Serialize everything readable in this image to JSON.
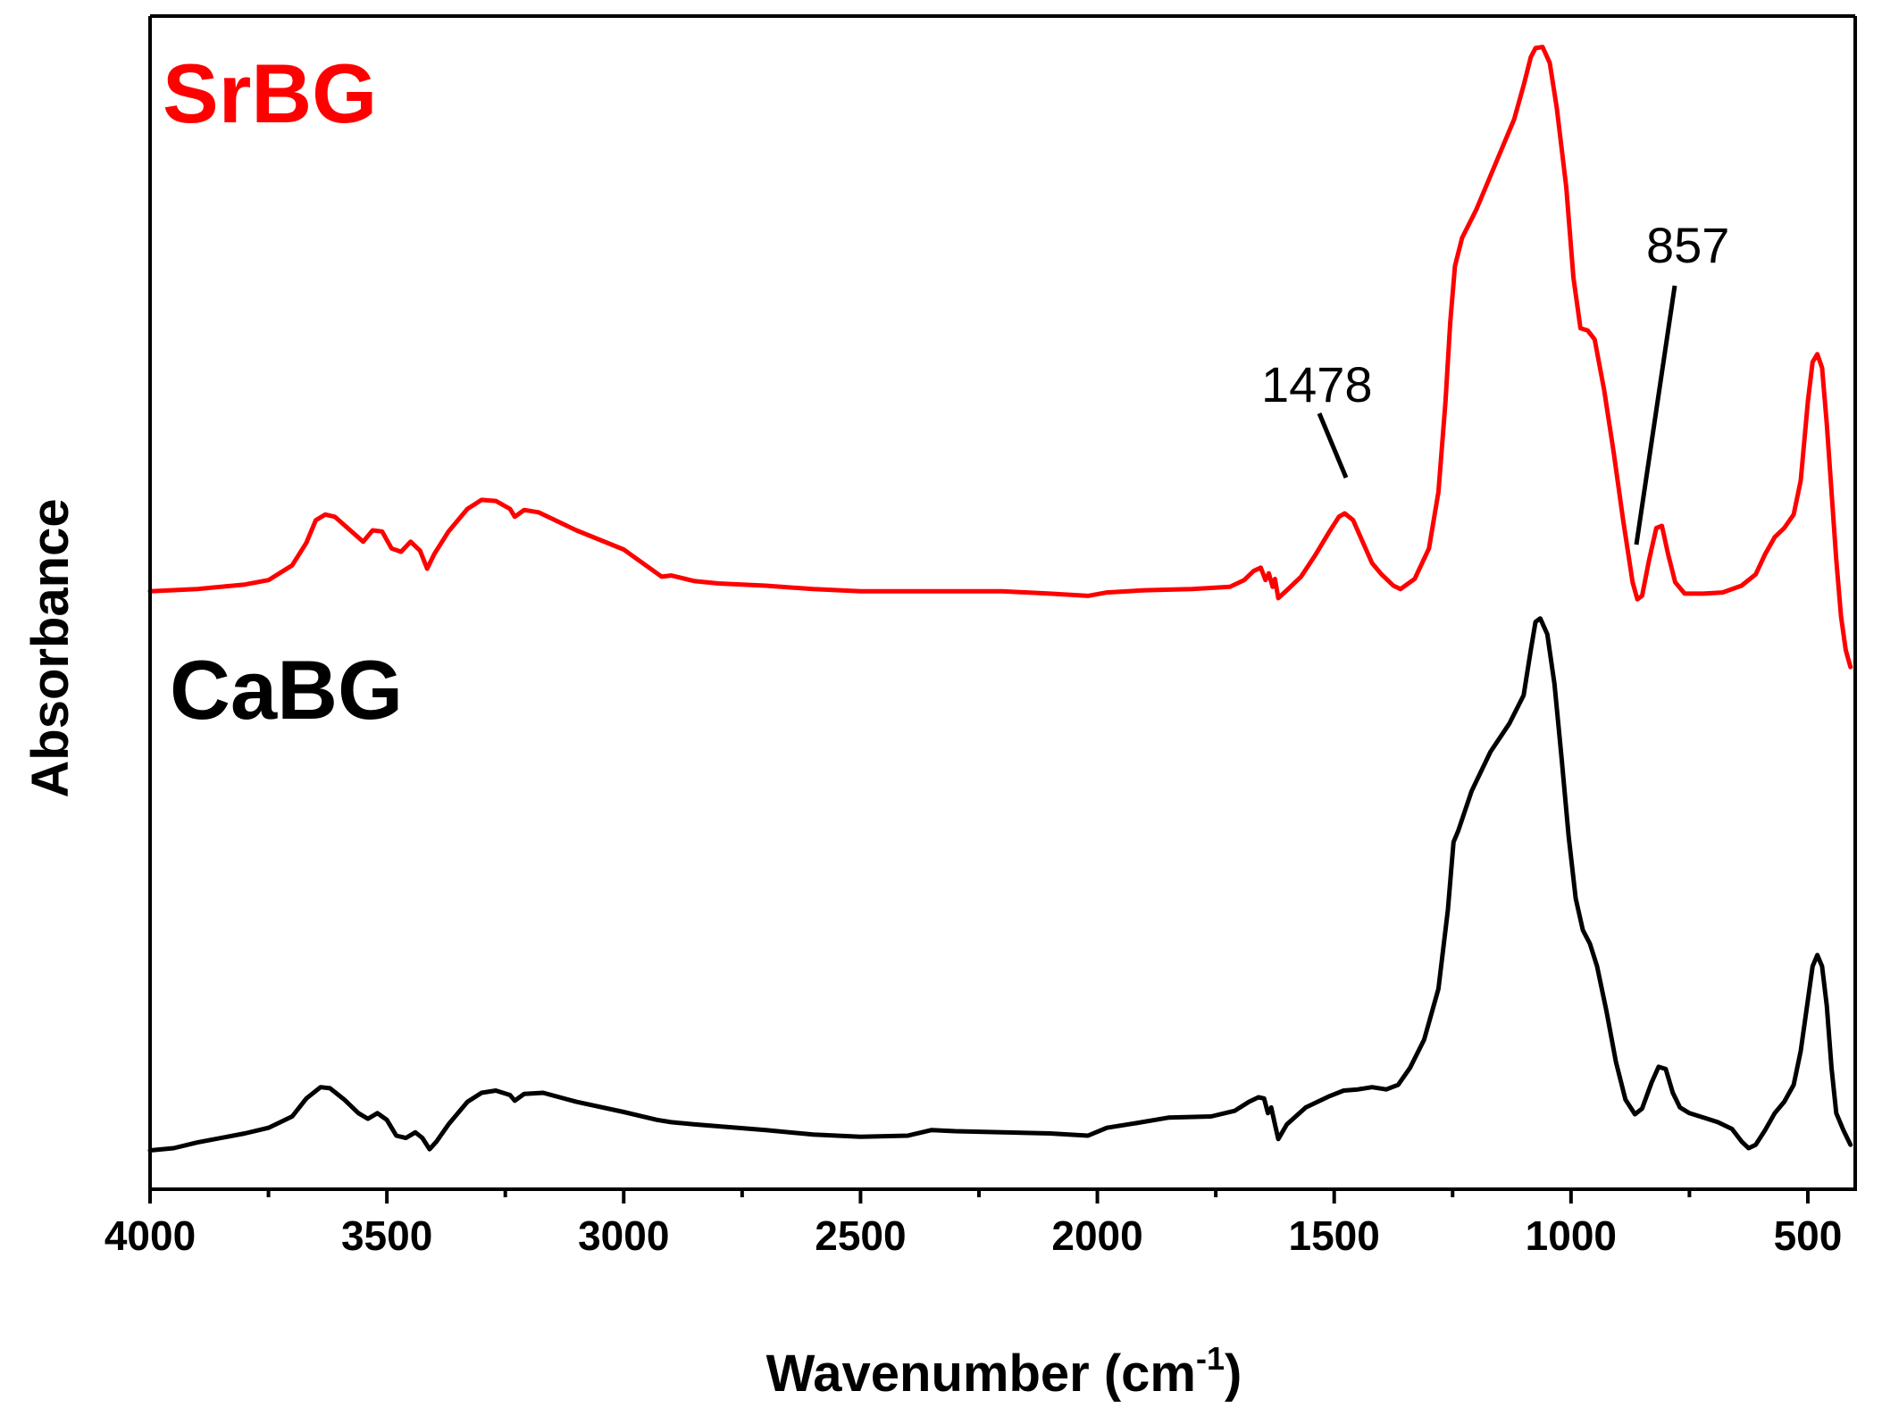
{
  "chart_data": {
    "type": "line",
    "xlabel": "Wavenumber (cm",
    "xlabel_sup": "-1",
    "xlabel_suffix": ")",
    "ylabel": "Absorbance",
    "xlim": [
      4000,
      400
    ],
    "x_reversed": true,
    "ylim": [
      0,
      1
    ],
    "y_ticks_shown": false,
    "grid": false,
    "x_ticks": [
      4000,
      3500,
      3000,
      2500,
      2000,
      1500,
      1000,
      500
    ],
    "x_minor_ticks": [
      3750,
      3250,
      2750,
      2250,
      1750,
      1250,
      750
    ],
    "series": [
      {
        "name": "SrBG",
        "color": "#ff0000",
        "points": [
          [
            4000,
            0.512
          ],
          [
            3900,
            0.514
          ],
          [
            3800,
            0.518
          ],
          [
            3750,
            0.522
          ],
          [
            3700,
            0.535
          ],
          [
            3670,
            0.555
          ],
          [
            3650,
            0.575
          ],
          [
            3630,
            0.58
          ],
          [
            3610,
            0.578
          ],
          [
            3580,
            0.567
          ],
          [
            3550,
            0.556
          ],
          [
            3530,
            0.566
          ],
          [
            3510,
            0.565
          ],
          [
            3490,
            0.55
          ],
          [
            3470,
            0.547
          ],
          [
            3450,
            0.556
          ],
          [
            3430,
            0.548
          ],
          [
            3415,
            0.532
          ],
          [
            3400,
            0.545
          ],
          [
            3370,
            0.565
          ],
          [
            3330,
            0.585
          ],
          [
            3300,
            0.593
          ],
          [
            3270,
            0.592
          ],
          [
            3240,
            0.585
          ],
          [
            3230,
            0.578
          ],
          [
            3210,
            0.584
          ],
          [
            3180,
            0.582
          ],
          [
            3100,
            0.566
          ],
          [
            3000,
            0.549
          ],
          [
            2950,
            0.534
          ],
          [
            2920,
            0.525
          ],
          [
            2900,
            0.526
          ],
          [
            2880,
            0.524
          ],
          [
            2850,
            0.521
          ],
          [
            2800,
            0.519
          ],
          [
            2700,
            0.517
          ],
          [
            2600,
            0.514
          ],
          [
            2500,
            0.512
          ],
          [
            2400,
            0.512
          ],
          [
            2300,
            0.512
          ],
          [
            2200,
            0.512
          ],
          [
            2100,
            0.51
          ],
          [
            2020,
            0.508
          ],
          [
            1980,
            0.511
          ],
          [
            1900,
            0.513
          ],
          [
            1800,
            0.514
          ],
          [
            1720,
            0.516
          ],
          [
            1690,
            0.522
          ],
          [
            1670,
            0.53
          ],
          [
            1655,
            0.533
          ],
          [
            1645,
            0.522
          ],
          [
            1638,
            0.528
          ],
          [
            1630,
            0.516
          ],
          [
            1625,
            0.523
          ],
          [
            1618,
            0.506
          ],
          [
            1600,
            0.513
          ],
          [
            1570,
            0.525
          ],
          [
            1540,
            0.544
          ],
          [
            1510,
            0.565
          ],
          [
            1490,
            0.578
          ],
          [
            1478,
            0.581
          ],
          [
            1460,
            0.575
          ],
          [
            1440,
            0.556
          ],
          [
            1420,
            0.537
          ],
          [
            1400,
            0.527
          ],
          [
            1375,
            0.517
          ],
          [
            1360,
            0.514
          ],
          [
            1330,
            0.523
          ],
          [
            1300,
            0.55
          ],
          [
            1280,
            0.6
          ],
          [
            1265,
            0.68
          ],
          [
            1255,
            0.75
          ],
          [
            1245,
            0.8
          ],
          [
            1230,
            0.825
          ],
          [
            1200,
            0.85
          ],
          [
            1160,
            0.89
          ],
          [
            1120,
            0.93
          ],
          [
            1100,
            0.96
          ],
          [
            1085,
            0.985
          ],
          [
            1075,
            0.993
          ],
          [
            1060,
            0.994
          ],
          [
            1045,
            0.98
          ],
          [
            1030,
            0.94
          ],
          [
            1010,
            0.87
          ],
          [
            995,
            0.79
          ],
          [
            980,
            0.745
          ],
          [
            965,
            0.743
          ],
          [
            950,
            0.735
          ],
          [
            930,
            0.69
          ],
          [
            910,
            0.635
          ],
          [
            890,
            0.575
          ],
          [
            870,
            0.52
          ],
          [
            860,
            0.505
          ],
          [
            850,
            0.508
          ],
          [
            835,
            0.54
          ],
          [
            820,
            0.568
          ],
          [
            808,
            0.57
          ],
          [
            795,
            0.545
          ],
          [
            780,
            0.52
          ],
          [
            760,
            0.51
          ],
          [
            720,
            0.51
          ],
          [
            680,
            0.511
          ],
          [
            640,
            0.517
          ],
          [
            610,
            0.527
          ],
          [
            590,
            0.545
          ],
          [
            570,
            0.56
          ],
          [
            550,
            0.568
          ],
          [
            530,
            0.58
          ],
          [
            515,
            0.61
          ],
          [
            500,
            0.68
          ],
          [
            490,
            0.715
          ],
          [
            480,
            0.722
          ],
          [
            470,
            0.71
          ],
          [
            460,
            0.66
          ],
          [
            450,
            0.6
          ],
          [
            440,
            0.54
          ],
          [
            430,
            0.49
          ],
          [
            420,
            0.46
          ],
          [
            410,
            0.445
          ]
        ]
      },
      {
        "name": "CaBG",
        "color": "#000000",
        "points": [
          [
            4000,
            0.017
          ],
          [
            3950,
            0.019
          ],
          [
            3900,
            0.024
          ],
          [
            3800,
            0.032
          ],
          [
            3750,
            0.037
          ],
          [
            3700,
            0.047
          ],
          [
            3670,
            0.063
          ],
          [
            3640,
            0.073
          ],
          [
            3620,
            0.072
          ],
          [
            3590,
            0.062
          ],
          [
            3560,
            0.05
          ],
          [
            3540,
            0.045
          ],
          [
            3520,
            0.05
          ],
          [
            3500,
            0.044
          ],
          [
            3480,
            0.03
          ],
          [
            3460,
            0.028
          ],
          [
            3440,
            0.033
          ],
          [
            3425,
            0.028
          ],
          [
            3410,
            0.018
          ],
          [
            3395,
            0.025
          ],
          [
            3370,
            0.04
          ],
          [
            3330,
            0.06
          ],
          [
            3300,
            0.068
          ],
          [
            3270,
            0.07
          ],
          [
            3240,
            0.066
          ],
          [
            3230,
            0.061
          ],
          [
            3210,
            0.067
          ],
          [
            3170,
            0.068
          ],
          [
            3100,
            0.06
          ],
          [
            3000,
            0.051
          ],
          [
            2930,
            0.044
          ],
          [
            2900,
            0.042
          ],
          [
            2850,
            0.04
          ],
          [
            2700,
            0.035
          ],
          [
            2600,
            0.031
          ],
          [
            2500,
            0.029
          ],
          [
            2400,
            0.03
          ],
          [
            2350,
            0.035
          ],
          [
            2300,
            0.034
          ],
          [
            2200,
            0.033
          ],
          [
            2100,
            0.032
          ],
          [
            2020,
            0.03
          ],
          [
            1980,
            0.037
          ],
          [
            1920,
            0.041
          ],
          [
            1850,
            0.046
          ],
          [
            1760,
            0.047
          ],
          [
            1710,
            0.052
          ],
          [
            1680,
            0.06
          ],
          [
            1660,
            0.064
          ],
          [
            1648,
            0.063
          ],
          [
            1640,
            0.05
          ],
          [
            1633,
            0.055
          ],
          [
            1625,
            0.04
          ],
          [
            1618,
            0.027
          ],
          [
            1600,
            0.04
          ],
          [
            1560,
            0.055
          ],
          [
            1510,
            0.065
          ],
          [
            1480,
            0.07
          ],
          [
            1450,
            0.071
          ],
          [
            1420,
            0.073
          ],
          [
            1390,
            0.071
          ],
          [
            1365,
            0.075
          ],
          [
            1340,
            0.09
          ],
          [
            1310,
            0.115
          ],
          [
            1280,
            0.16
          ],
          [
            1260,
            0.23
          ],
          [
            1248,
            0.29
          ],
          [
            1238,
            0.3
          ],
          [
            1210,
            0.335
          ],
          [
            1170,
            0.37
          ],
          [
            1130,
            0.395
          ],
          [
            1100,
            0.42
          ],
          [
            1085,
            0.46
          ],
          [
            1075,
            0.485
          ],
          [
            1065,
            0.488
          ],
          [
            1050,
            0.474
          ],
          [
            1035,
            0.43
          ],
          [
            1020,
            0.365
          ],
          [
            1005,
            0.295
          ],
          [
            990,
            0.24
          ],
          [
            975,
            0.212
          ],
          [
            960,
            0.2
          ],
          [
            945,
            0.18
          ],
          [
            925,
            0.14
          ],
          [
            905,
            0.095
          ],
          [
            885,
            0.062
          ],
          [
            865,
            0.049
          ],
          [
            850,
            0.054
          ],
          [
            830,
            0.077
          ],
          [
            815,
            0.091
          ],
          [
            800,
            0.089
          ],
          [
            785,
            0.068
          ],
          [
            770,
            0.055
          ],
          [
            750,
            0.05
          ],
          [
            720,
            0.046
          ],
          [
            690,
            0.042
          ],
          [
            660,
            0.036
          ],
          [
            640,
            0.025
          ],
          [
            625,
            0.019
          ],
          [
            610,
            0.022
          ],
          [
            590,
            0.035
          ],
          [
            570,
            0.05
          ],
          [
            550,
            0.06
          ],
          [
            530,
            0.075
          ],
          [
            515,
            0.105
          ],
          [
            500,
            0.15
          ],
          [
            490,
            0.18
          ],
          [
            480,
            0.19
          ],
          [
            470,
            0.18
          ],
          [
            460,
            0.145
          ],
          [
            450,
            0.09
          ],
          [
            440,
            0.05
          ],
          [
            425,
            0.035
          ],
          [
            410,
            0.022
          ]
        ]
      }
    ],
    "annotations": [
      {
        "text": "1478",
        "x": 1478
      },
      {
        "text": "857",
        "x": 857
      }
    ]
  }
}
